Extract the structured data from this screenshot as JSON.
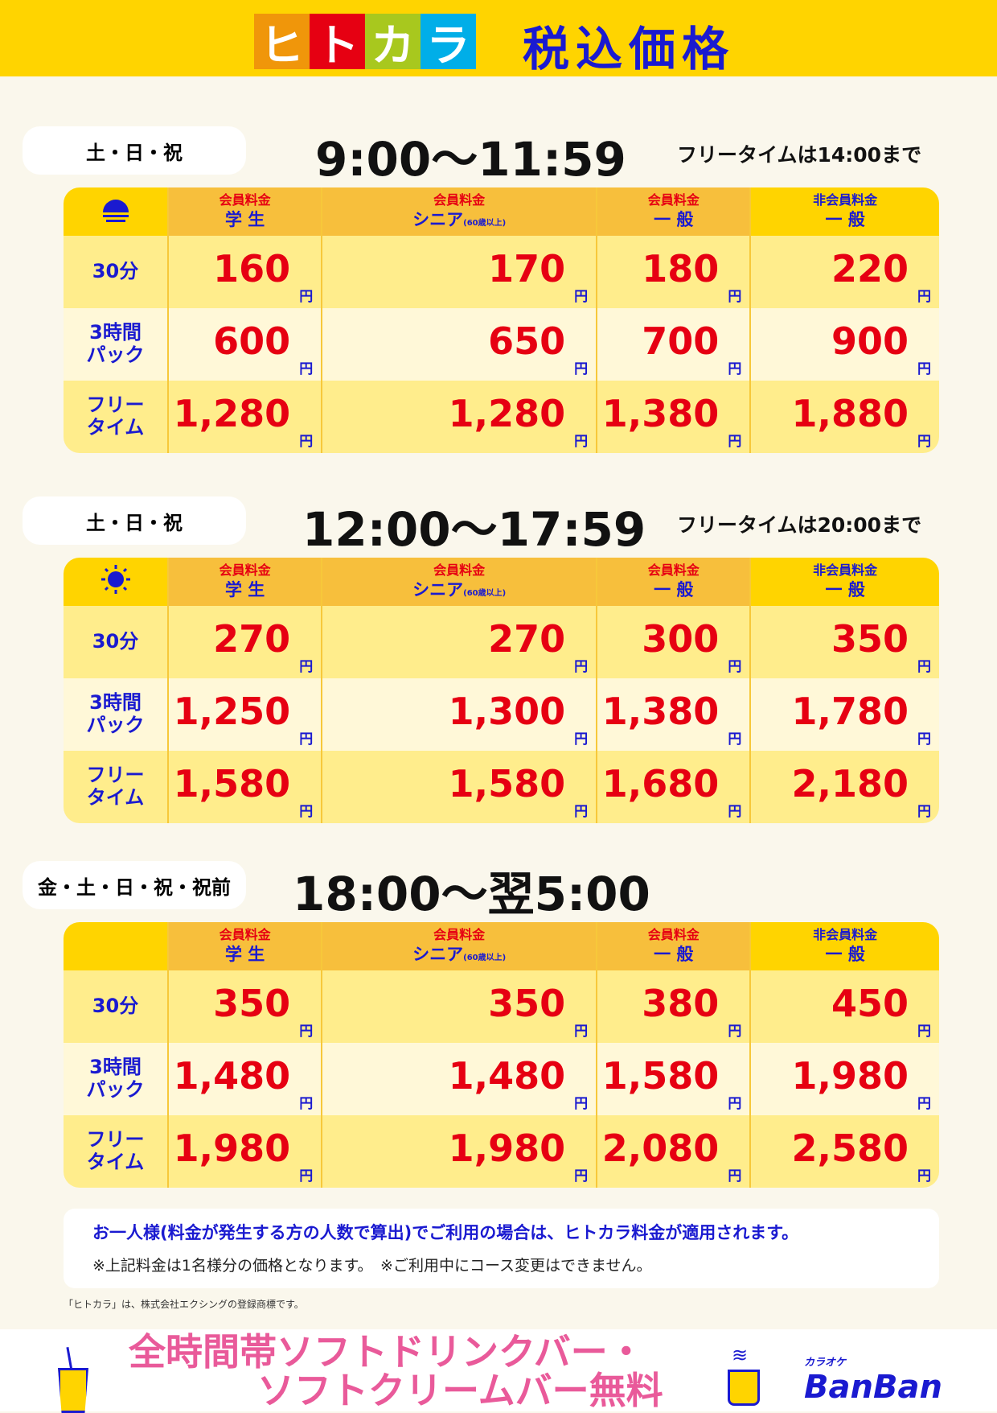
{
  "header": {
    "logo_text": "ヒトカラ",
    "logo_chars": [
      "ヒ",
      "ト",
      "カ",
      "ラ"
    ],
    "logo_colors": [
      "#f0960a",
      "#e60012",
      "#a8c81e",
      "#00aee8"
    ],
    "title": "税込価格"
  },
  "columns": [
    {
      "top": "会員料金",
      "bottom": "学 生"
    },
    {
      "top": "会員料金",
      "bottom": "シニア",
      "note": "(60歳以上)"
    },
    {
      "top": "会員料金",
      "bottom": "一 般"
    },
    {
      "top": "非会員料金",
      "bottom": "一 般"
    }
  ],
  "row_labels": [
    {
      "a": "30分",
      "b": ""
    },
    {
      "a": "3時間",
      "b": "パック"
    },
    {
      "a": "フリー",
      "b": "タイム"
    }
  ],
  "yen": "円",
  "sections": [
    {
      "days": "土・日・祝",
      "time": "9:00〜11:59",
      "free_until": "フリータイムは14:00まで",
      "icon": "sunrise-icon",
      "rows": [
        [
          "160",
          "170",
          "180",
          "220"
        ],
        [
          "600",
          "650",
          "700",
          "900"
        ],
        [
          "1,280",
          "1,280",
          "1,380",
          "1,880"
        ]
      ]
    },
    {
      "days": "土・日・祝",
      "time": "12:00〜17:59",
      "free_until": "フリータイムは20:00まで",
      "icon": "sun-icon",
      "rows": [
        [
          "270",
          "270",
          "300",
          "350"
        ],
        [
          "1,250",
          "1,300",
          "1,380",
          "1,780"
        ],
        [
          "1,580",
          "1,580",
          "1,680",
          "2,180"
        ]
      ]
    },
    {
      "days": "金・土・日・祝・祝前",
      "time": "18:00〜翌5:00",
      "free_until": "",
      "icon": "moon-icon",
      "rows": [
        [
          "350",
          "350",
          "380",
          "450"
        ],
        [
          "1,480",
          "1,480",
          "1,580",
          "1,980"
        ],
        [
          "1,980",
          "1,980",
          "2,080",
          "2,580"
        ]
      ]
    }
  ],
  "note": {
    "line1": "お一人様(料金が発生する方の人数で算出)でご利用の場合は、ヒトカラ料金が適用されます。",
    "line2": "※上記料金は1名様分の価格となります。　※ご利用中にコース変更はできません。"
  },
  "trademark": "「ヒトカラ」は、株式会社エクシングの登録商標です。",
  "promo": {
    "line1": "全時間帯ソフトドリンクバー・",
    "line2": "ソフトクリームバー無料"
  },
  "brand": {
    "small": "カラオケ",
    "name": "BanBan"
  }
}
